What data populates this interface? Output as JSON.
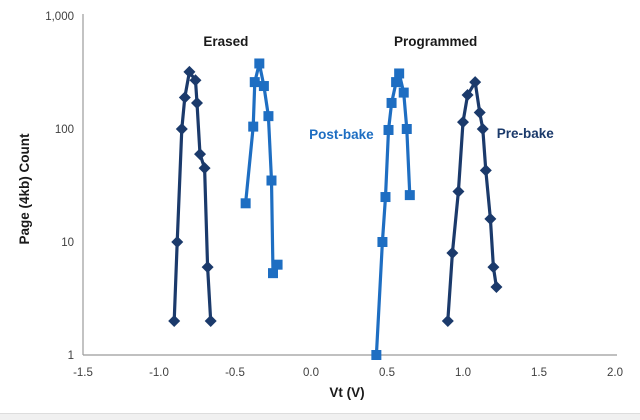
{
  "chart_data": {
    "type": "line",
    "title": "",
    "xlabel": "Vt (V)",
    "ylabel": "Page (4kb) Count",
    "x_scale": "linear",
    "y_scale": "log",
    "xlim": [
      -1.5,
      2.0
    ],
    "ylim": [
      1,
      1000
    ],
    "grid": false,
    "legend_position": "none",
    "x_ticks": [
      {
        "v": -1.5,
        "label": "-1.5"
      },
      {
        "v": -1.0,
        "label": "-1.0"
      },
      {
        "v": -0.5,
        "label": "-0.5"
      },
      {
        "v": 0.0,
        "label": "0.0"
      },
      {
        "v": 0.5,
        "label": "0.5"
      },
      {
        "v": 1.0,
        "label": "1.0"
      },
      {
        "v": 1.5,
        "label": "1.5"
      },
      {
        "v": 2.0,
        "label": "2.0"
      }
    ],
    "y_ticks": [
      {
        "v": 1,
        "label": "1"
      },
      {
        "v": 10,
        "label": "10"
      },
      {
        "v": 100,
        "label": "100"
      },
      {
        "v": 1000,
        "label": "1,000"
      }
    ],
    "annotations": [
      {
        "text": "Erased",
        "x": -0.56,
        "y": 600,
        "color": "#1a1a1a"
      },
      {
        "text": "Programmed",
        "x": 0.82,
        "y": 600,
        "color": "#1a1a1a"
      },
      {
        "text": "Post-bake",
        "x": 0.2,
        "y": 90,
        "color": "#1e6ec2"
      },
      {
        "text": "Pre-bake",
        "x": 1.41,
        "y": 92,
        "color": "#1b3a6b"
      }
    ],
    "series": [
      {
        "name": "Erased Pre-bake",
        "color": "#1b3a6b",
        "marker": "diamond",
        "points": [
          [
            -0.9,
            2
          ],
          [
            -0.88,
            10
          ],
          [
            -0.85,
            100
          ],
          [
            -0.83,
            190
          ],
          [
            -0.8,
            320
          ],
          [
            -0.76,
            270
          ],
          [
            -0.75,
            170
          ],
          [
            -0.73,
            60
          ],
          [
            -0.7,
            45
          ],
          [
            -0.68,
            6
          ],
          [
            -0.66,
            2
          ]
        ]
      },
      {
        "name": "Erased Post-bake",
        "color": "#1e6ec2",
        "marker": "square",
        "points": [
          [
            -0.43,
            22
          ],
          [
            -0.38,
            105
          ],
          [
            -0.37,
            260
          ],
          [
            -0.34,
            380
          ],
          [
            -0.31,
            240
          ],
          [
            -0.28,
            130
          ],
          [
            -0.26,
            35
          ],
          [
            -0.25,
            5.3
          ],
          [
            -0.22,
            6.3
          ]
        ]
      },
      {
        "name": "Programmed Post-bake",
        "color": "#1e6ec2",
        "marker": "square",
        "points": [
          [
            0.43,
            1
          ],
          [
            0.47,
            10
          ],
          [
            0.49,
            25
          ],
          [
            0.51,
            98
          ],
          [
            0.53,
            170
          ],
          [
            0.56,
            260
          ],
          [
            0.58,
            310
          ],
          [
            0.61,
            210
          ],
          [
            0.63,
            100
          ],
          [
            0.65,
            26
          ]
        ]
      },
      {
        "name": "Programmed Pre-bake",
        "color": "#1b3a6b",
        "marker": "diamond",
        "points": [
          [
            0.9,
            2
          ],
          [
            0.93,
            8
          ],
          [
            0.97,
            28
          ],
          [
            1.0,
            115
          ],
          [
            1.03,
            200
          ],
          [
            1.08,
            260
          ],
          [
            1.11,
            140
          ],
          [
            1.13,
            100
          ],
          [
            1.15,
            43
          ],
          [
            1.18,
            16
          ],
          [
            1.2,
            6
          ],
          [
            1.22,
            4
          ]
        ]
      }
    ],
    "colors": {
      "axis_line": "#9b9b9b",
      "tick_text": "#3f3f3f",
      "title_text": "#1a1a1a",
      "navy_series": "#1b3a6b",
      "blue_series": "#1e6ec2"
    }
  }
}
